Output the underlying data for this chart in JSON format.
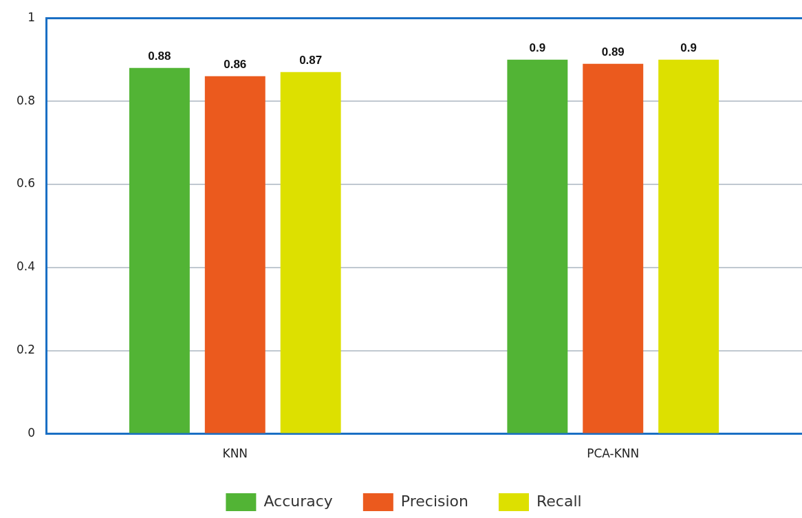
{
  "chart_data": {
    "type": "bar",
    "categories": [
      "KNN",
      "PCA-KNN"
    ],
    "series": [
      {
        "name": "Accuracy",
        "color": "#52b435",
        "values": [
          0.88,
          0.9
        ]
      },
      {
        "name": "Precision",
        "color": "#eb5a1e",
        "values": [
          0.86,
          0.89
        ]
      },
      {
        "name": "Recall",
        "color": "#dde000",
        "values": [
          0.87,
          0.9
        ]
      }
    ],
    "ylim": [
      0,
      1
    ],
    "yticks": [
      0,
      0.2,
      0.4,
      0.6,
      0.8,
      1
    ],
    "grid": "y",
    "legend": "bottom",
    "data_labels": true
  }
}
